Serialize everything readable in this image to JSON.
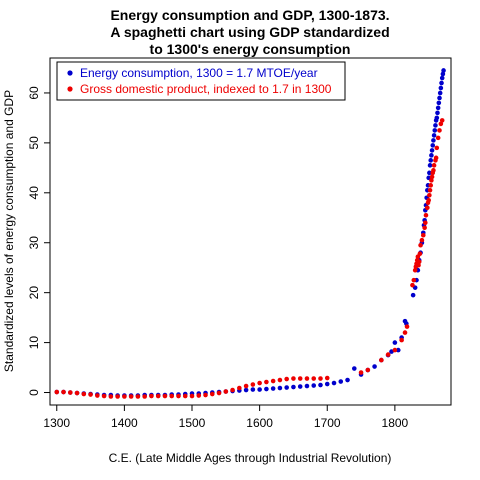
{
  "chart_data": {
    "type": "scatter",
    "title_lines": [
      "Energy consumption and GDP, 1300-1873.",
      "A spaghetti chart using GDP standardized",
      "to 1300's energy consumption"
    ],
    "xlabel": "C.E. (Late Middle Ages through Industrial Revolution)",
    "ylabel": "Standardized levels of energy consumption and GDP",
    "xlim": [
      1290,
      1883
    ],
    "ylim": [
      -2.5,
      67
    ],
    "x_ticks": [
      1300,
      1400,
      1500,
      1600,
      1700,
      1800
    ],
    "y_ticks": [
      0,
      10,
      20,
      30,
      40,
      50,
      60
    ],
    "grid": false,
    "legend_position": "top-left",
    "series": [
      {
        "name": "Energy consumption, 1300 = 1.7 MTOE/year",
        "color": "#0000CC",
        "points": [
          [
            1300,
            0.1
          ],
          [
            1310,
            0.1
          ],
          [
            1320,
            0.0
          ],
          [
            1330,
            -0.1
          ],
          [
            1340,
            -0.2
          ],
          [
            1350,
            -0.3
          ],
          [
            1360,
            -0.4
          ],
          [
            1370,
            -0.5
          ],
          [
            1380,
            -0.5
          ],
          [
            1390,
            -0.6
          ],
          [
            1400,
            -0.6
          ],
          [
            1410,
            -0.6
          ],
          [
            1420,
            -0.6
          ],
          [
            1430,
            -0.5
          ],
          [
            1440,
            -0.5
          ],
          [
            1450,
            -0.5
          ],
          [
            1460,
            -0.5
          ],
          [
            1470,
            -0.4
          ],
          [
            1480,
            -0.4
          ],
          [
            1490,
            -0.3
          ],
          [
            1500,
            -0.2
          ],
          [
            1510,
            -0.2
          ],
          [
            1520,
            -0.1
          ],
          [
            1530,
            0.0
          ],
          [
            1540,
            0.1
          ],
          [
            1550,
            0.2
          ],
          [
            1560,
            0.3
          ],
          [
            1570,
            0.4
          ],
          [
            1580,
            0.5
          ],
          [
            1590,
            0.6
          ],
          [
            1600,
            0.6
          ],
          [
            1610,
            0.7
          ],
          [
            1620,
            0.8
          ],
          [
            1630,
            0.9
          ],
          [
            1640,
            1.0
          ],
          [
            1650,
            1.1
          ],
          [
            1660,
            1.2
          ],
          [
            1670,
            1.3
          ],
          [
            1680,
            1.4
          ],
          [
            1690,
            1.5
          ],
          [
            1700,
            1.7
          ],
          [
            1710,
            1.9
          ],
          [
            1720,
            2.2
          ],
          [
            1730,
            2.5
          ],
          [
            1740,
            4.8
          ],
          [
            1750,
            3.6
          ],
          [
            1760,
            4.5
          ],
          [
            1770,
            5.2
          ],
          [
            1780,
            6.5
          ],
          [
            1790,
            7.5
          ],
          [
            1795,
            8.2
          ],
          [
            1800,
            10.0
          ],
          [
            1805,
            8.5
          ],
          [
            1810,
            11.0
          ],
          [
            1815,
            14.3
          ],
          [
            1817,
            13.8
          ],
          [
            1827,
            19.5
          ],
          [
            1830,
            21.0
          ],
          [
            1832,
            22.5
          ],
          [
            1834,
            24.5
          ],
          [
            1836,
            26.5
          ],
          [
            1838,
            28.0
          ],
          [
            1840,
            30.0
          ],
          [
            1842,
            32.0
          ],
          [
            1843,
            33.5
          ],
          [
            1844,
            34.5
          ],
          [
            1845,
            36.5
          ],
          [
            1846,
            37.5
          ],
          [
            1847,
            39.0
          ],
          [
            1848,
            40.5
          ],
          [
            1849,
            41.5
          ],
          [
            1850,
            43.0
          ],
          [
            1851,
            44.0
          ],
          [
            1852,
            45.5
          ],
          [
            1853,
            46.5
          ],
          [
            1854,
            47.5
          ],
          [
            1855,
            48.5
          ],
          [
            1856,
            49.5
          ],
          [
            1857,
            50.5
          ],
          [
            1858,
            51.5
          ],
          [
            1859,
            52.5
          ],
          [
            1860,
            53.5
          ],
          [
            1861,
            54.5
          ],
          [
            1862,
            55.0
          ],
          [
            1863,
            56.0
          ],
          [
            1864,
            57.0
          ],
          [
            1865,
            58.0
          ],
          [
            1866,
            59.0
          ],
          [
            1867,
            60.0
          ],
          [
            1868,
            61.0
          ],
          [
            1869,
            62.0
          ],
          [
            1870,
            63.0
          ],
          [
            1871,
            63.8
          ],
          [
            1872,
            64.5
          ]
        ]
      },
      {
        "name": "Gross domestic product, indexed to 1.7 in 1300",
        "color": "#EE0000",
        "points": [
          [
            1300,
            0.1
          ],
          [
            1310,
            0.1
          ],
          [
            1320,
            0.0
          ],
          [
            1330,
            -0.1
          ],
          [
            1340,
            -0.3
          ],
          [
            1350,
            -0.4
          ],
          [
            1360,
            -0.6
          ],
          [
            1370,
            -0.7
          ],
          [
            1380,
            -0.8
          ],
          [
            1390,
            -0.8
          ],
          [
            1400,
            -0.8
          ],
          [
            1410,
            -0.8
          ],
          [
            1420,
            -0.8
          ],
          [
            1430,
            -0.8
          ],
          [
            1440,
            -0.7
          ],
          [
            1450,
            -0.7
          ],
          [
            1460,
            -0.7
          ],
          [
            1470,
            -0.7
          ],
          [
            1480,
            -0.7
          ],
          [
            1490,
            -0.7
          ],
          [
            1500,
            -0.7
          ],
          [
            1510,
            -0.6
          ],
          [
            1520,
            -0.5
          ],
          [
            1530,
            -0.3
          ],
          [
            1540,
            -0.1
          ],
          [
            1550,
            0.2
          ],
          [
            1560,
            0.5
          ],
          [
            1570,
            0.9
          ],
          [
            1580,
            1.3
          ],
          [
            1590,
            1.6
          ],
          [
            1600,
            1.9
          ],
          [
            1610,
            2.1
          ],
          [
            1620,
            2.3
          ],
          [
            1630,
            2.5
          ],
          [
            1640,
            2.7
          ],
          [
            1650,
            2.8
          ],
          [
            1660,
            2.8
          ],
          [
            1670,
            2.8
          ],
          [
            1680,
            2.8
          ],
          [
            1690,
            2.8
          ],
          [
            1700,
            2.9
          ],
          [
            1750,
            4.0
          ],
          [
            1760,
            4.5
          ],
          [
            1780,
            6.5
          ],
          [
            1790,
            7.6
          ],
          [
            1800,
            8.5
          ],
          [
            1810,
            10.5
          ],
          [
            1815,
            12.0
          ],
          [
            1818,
            13.2
          ],
          [
            1826,
            21.5
          ],
          [
            1828,
            22.5
          ],
          [
            1830,
            24.5
          ],
          [
            1831,
            25.2
          ],
          [
            1832,
            25.8
          ],
          [
            1833,
            26.5
          ],
          [
            1834,
            27.2
          ],
          [
            1835,
            25.5
          ],
          [
            1836,
            26.2
          ],
          [
            1837,
            27.8
          ],
          [
            1838,
            29.5
          ],
          [
            1840,
            30.5
          ],
          [
            1842,
            31.5
          ],
          [
            1844,
            33.0
          ],
          [
            1845,
            34.0
          ],
          [
            1846,
            35.5
          ],
          [
            1848,
            37.0
          ],
          [
            1849,
            38.0
          ],
          [
            1850,
            38.5
          ],
          [
            1851,
            39.5
          ],
          [
            1852,
            40.5
          ],
          [
            1853,
            41.5
          ],
          [
            1854,
            42.5
          ],
          [
            1855,
            43.2
          ],
          [
            1856,
            44.0
          ],
          [
            1857,
            44.5
          ],
          [
            1858,
            45.5
          ],
          [
            1860,
            46.5
          ],
          [
            1861,
            47.0
          ],
          [
            1862,
            49.0
          ],
          [
            1864,
            51.0
          ],
          [
            1866,
            52.5
          ],
          [
            1868,
            53.8
          ],
          [
            1870,
            54.5
          ]
        ]
      }
    ]
  }
}
